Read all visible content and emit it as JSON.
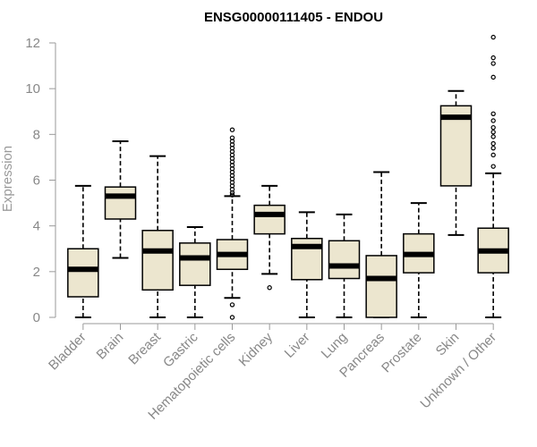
{
  "chart_data": {
    "type": "box",
    "title": "ENSG00000111405 - ENDOU",
    "xlabel": "",
    "ylabel": "Expression",
    "ylim": [
      0,
      12.5
    ],
    "yticks": [
      "0",
      "2",
      "4",
      "6",
      "8",
      "10",
      "12"
    ],
    "categories": [
      "Bladder",
      "Brain",
      "Breast",
      "Gastric",
      "Hematopoietic cells",
      "Kidney",
      "Liver",
      "Lung",
      "Pancreas",
      "Prostate",
      "Skin",
      "Unknown / Other"
    ],
    "boxes": [
      {
        "min": 0.0,
        "q1": 0.9,
        "median": 2.1,
        "q3": 3.0,
        "max": 5.75,
        "outliers": []
      },
      {
        "min": 2.6,
        "q1": 4.3,
        "median": 5.3,
        "q3": 5.7,
        "max": 7.7,
        "outliers": []
      },
      {
        "min": 0.0,
        "q1": 1.2,
        "median": 2.9,
        "q3": 3.8,
        "max": 7.05,
        "outliers": []
      },
      {
        "min": 0.0,
        "q1": 1.4,
        "median": 2.6,
        "q3": 3.25,
        "max": 3.95,
        "outliers": []
      },
      {
        "min": 0.85,
        "q1": 2.1,
        "median": 2.75,
        "q3": 3.4,
        "max": 5.3,
        "outliers": [
          0.0,
          0.55,
          5.35,
          5.45,
          5.6,
          5.75,
          5.9,
          6.05,
          6.2,
          6.35,
          6.5,
          6.65,
          6.8,
          6.95,
          7.1,
          7.25,
          7.4,
          7.55,
          7.7,
          7.85,
          8.2
        ]
      },
      {
        "min": 1.9,
        "q1": 3.65,
        "median": 4.5,
        "q3": 4.9,
        "max": 5.75,
        "outliers": [
          1.3
        ]
      },
      {
        "min": 0.0,
        "q1": 1.65,
        "median": 3.1,
        "q3": 3.45,
        "max": 4.6,
        "outliers": []
      },
      {
        "min": 0.0,
        "q1": 1.7,
        "median": 2.25,
        "q3": 3.35,
        "max": 4.5,
        "outliers": []
      },
      {
        "min": 0.0,
        "q1": 0.0,
        "median": 1.7,
        "q3": 2.7,
        "max": 6.35,
        "outliers": []
      },
      {
        "min": 0.0,
        "q1": 1.95,
        "median": 2.75,
        "q3": 3.65,
        "max": 5.0,
        "outliers": []
      },
      {
        "min": 3.6,
        "q1": 5.75,
        "median": 8.75,
        "q3": 9.25,
        "max": 9.9,
        "outliers": []
      },
      {
        "min": 0.0,
        "q1": 1.95,
        "median": 2.9,
        "q3": 3.9,
        "max": 6.3,
        "outliers": [
          6.6,
          7.1,
          7.4,
          7.6,
          7.9,
          8.1,
          8.3,
          8.6,
          8.9,
          10.5,
          11.1,
          11.35,
          12.25
        ]
      }
    ],
    "grid": false,
    "legend": "none",
    "colors": {
      "box_fill": "#ece6cf",
      "box_stroke": "#000000",
      "median": "#000000",
      "axis": "#9a9a9a",
      "tick_text": "#888888",
      "title": "#000000"
    }
  }
}
